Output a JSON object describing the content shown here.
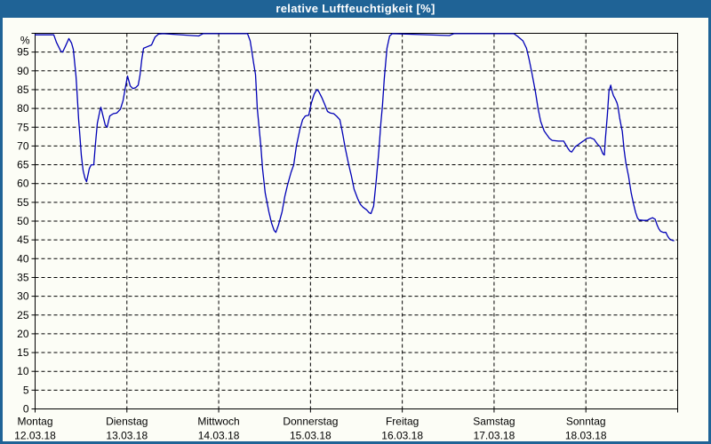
{
  "window": {
    "title": "relative Luftfeuchtigkeit [%]"
  },
  "colors": {
    "frame": "#1f6396",
    "title_text": "#ffffff",
    "background": "#fcfdf6",
    "plot_border": "#000000",
    "grid": "#000000",
    "axis_text": "#000000",
    "line": "#0000b6"
  },
  "chart_data": {
    "type": "line",
    "title": "relative Luftfeuchtigkeit [%]",
    "y_unit_label": "%",
    "ylim": [
      0,
      100
    ],
    "xlim_days": [
      0,
      7
    ],
    "grid": "dashed",
    "legend": "none",
    "y_tick_labels": [
      95,
      90,
      85,
      80,
      75,
      70,
      65,
      60,
      55,
      50,
      45,
      40,
      35,
      30,
      25,
      20,
      15,
      10,
      5,
      0
    ],
    "x_axis_days": [
      {
        "name": "Montag",
        "date": "12.03.18"
      },
      {
        "name": "Dienstag",
        "date": "13.03.18"
      },
      {
        "name": "Mittwoch",
        "date": "14.03.18"
      },
      {
        "name": "Donnerstag",
        "date": "15.03.18"
      },
      {
        "name": "Freitag",
        "date": "16.03.18"
      },
      {
        "name": "Samstag",
        "date": "17.03.18"
      },
      {
        "name": "Sonntag",
        "date": "18.03.18"
      }
    ],
    "series": [
      {
        "name": "relative Luftfeuchtigkeit",
        "unit": "%",
        "points": [
          [
            0.0,
            99.6
          ],
          [
            0.203,
            99.6
          ],
          [
            0.232,
            97.6
          ],
          [
            0.281,
            95.2
          ],
          [
            0.3,
            95.0
          ],
          [
            0.329,
            96.5
          ],
          [
            0.368,
            98.6
          ],
          [
            0.397,
            97.4
          ],
          [
            0.416,
            95.7
          ],
          [
            0.436,
            91.0
          ],
          [
            0.445,
            88.6
          ],
          [
            0.455,
            85.0
          ],
          [
            0.465,
            81.0
          ],
          [
            0.474,
            77.0
          ],
          [
            0.484,
            74.0
          ],
          [
            0.503,
            67.5
          ],
          [
            0.523,
            63.5
          ],
          [
            0.542,
            61.5
          ],
          [
            0.561,
            60.5
          ],
          [
            0.59,
            63.9
          ],
          [
            0.61,
            65.0
          ],
          [
            0.639,
            65.0
          ],
          [
            0.658,
            70.8
          ],
          [
            0.678,
            76.0
          ],
          [
            0.707,
            79.5
          ],
          [
            0.716,
            80.3
          ],
          [
            0.745,
            77.5
          ],
          [
            0.765,
            75.5
          ],
          [
            0.784,
            75.0
          ],
          [
            0.813,
            78.0
          ],
          [
            0.852,
            78.6
          ],
          [
            0.891,
            78.8
          ],
          [
            0.929,
            79.8
          ],
          [
            0.958,
            82.0
          ],
          [
            0.987,
            86.0
          ],
          [
            1.007,
            88.6
          ],
          [
            1.036,
            86.0
          ],
          [
            1.065,
            85.3
          ],
          [
            1.094,
            85.5
          ],
          [
            1.123,
            86.2
          ],
          [
            1.142,
            88.8
          ],
          [
            1.162,
            93.0
          ],
          [
            1.181,
            96.0
          ],
          [
            1.22,
            96.4
          ],
          [
            1.268,
            96.9
          ],
          [
            1.307,
            99.0
          ],
          [
            1.346,
            99.8
          ],
          [
            1.394,
            99.9
          ],
          [
            1.781,
            99.3
          ],
          [
            1.829,
            99.9
          ],
          [
            2.314,
            99.9
          ],
          [
            2.343,
            98.0
          ],
          [
            2.362,
            95.0
          ],
          [
            2.381,
            92.0
          ],
          [
            2.401,
            89.0
          ],
          [
            2.41,
            85.0
          ],
          [
            2.42,
            80.0
          ],
          [
            2.44,
            75.0
          ],
          [
            2.459,
            70.0
          ],
          [
            2.478,
            64.0
          ],
          [
            2.507,
            57.5
          ],
          [
            2.546,
            52.5
          ],
          [
            2.575,
            49.5
          ],
          [
            2.604,
            47.5
          ],
          [
            2.623,
            47.0
          ],
          [
            2.652,
            49.0
          ],
          [
            2.691,
            52.5
          ],
          [
            2.72,
            56.5
          ],
          [
            2.749,
            59.5
          ],
          [
            2.788,
            63.0
          ],
          [
            2.817,
            65.0
          ],
          [
            2.846,
            70.0
          ],
          [
            2.885,
            74.5
          ],
          [
            2.914,
            77.0
          ],
          [
            2.943,
            78.0
          ],
          [
            2.981,
            78.2
          ],
          [
            3.01,
            81.5
          ],
          [
            3.04,
            83.8
          ],
          [
            3.069,
            85.0
          ],
          [
            3.088,
            84.6
          ],
          [
            3.127,
            82.7
          ],
          [
            3.156,
            81.0
          ],
          [
            3.185,
            79.2
          ],
          [
            3.214,
            78.8
          ],
          [
            3.253,
            78.6
          ],
          [
            3.282,
            78.0
          ],
          [
            3.32,
            77.0
          ],
          [
            3.349,
            73.5
          ],
          [
            3.378,
            69.5
          ],
          [
            3.417,
            65.0
          ],
          [
            3.446,
            62.0
          ],
          [
            3.475,
            58.5
          ],
          [
            3.514,
            56.0
          ],
          [
            3.543,
            54.5
          ],
          [
            3.572,
            53.7
          ],
          [
            3.611,
            53.0
          ],
          [
            3.64,
            52.2
          ],
          [
            3.659,
            52.0
          ],
          [
            3.688,
            54.0
          ],
          [
            3.717,
            61.0
          ],
          [
            3.746,
            69.0
          ],
          [
            3.766,
            76.0
          ],
          [
            3.785,
            81.0
          ],
          [
            3.804,
            88.0
          ],
          [
            3.833,
            96.0
          ],
          [
            3.862,
            99.3
          ],
          [
            3.891,
            99.9
          ],
          [
            4.513,
            99.4
          ],
          [
            4.561,
            99.9
          ],
          [
            5.217,
            99.9
          ],
          [
            5.266,
            99.0
          ],
          [
            5.314,
            98.0
          ],
          [
            5.353,
            96.0
          ],
          [
            5.382,
            93.0
          ],
          [
            5.411,
            89.5
          ],
          [
            5.45,
            84.5
          ],
          [
            5.479,
            80.0
          ],
          [
            5.508,
            76.5
          ],
          [
            5.546,
            74.0
          ],
          [
            5.575,
            73.0
          ],
          [
            5.604,
            72.0
          ],
          [
            5.633,
            71.5
          ],
          [
            5.701,
            71.3
          ],
          [
            5.759,
            71.3
          ],
          [
            5.798,
            69.6
          ],
          [
            5.827,
            68.6
          ],
          [
            5.846,
            68.4
          ],
          [
            5.885,
            69.8
          ],
          [
            5.914,
            70.3
          ],
          [
            5.952,
            71.0
          ],
          [
            5.981,
            71.5
          ],
          [
            6.01,
            72.0
          ],
          [
            6.049,
            72.2
          ],
          [
            6.088,
            71.8
          ],
          [
            6.126,
            70.5
          ],
          [
            6.155,
            69.8
          ],
          [
            6.184,
            68.0
          ],
          [
            6.201,
            67.6
          ],
          [
            6.213,
            72.0
          ],
          [
            6.233,
            78.0
          ],
          [
            6.252,
            84.6
          ],
          [
            6.271,
            86.2
          ],
          [
            6.281,
            85.0
          ],
          [
            6.3,
            83.4
          ],
          [
            6.32,
            82.5
          ],
          [
            6.339,
            81.5
          ],
          [
            6.349,
            80.5
          ],
          [
            6.368,
            77.5
          ],
          [
            6.387,
            75.0
          ],
          [
            6.397,
            73.9
          ],
          [
            6.416,
            69.0
          ],
          [
            6.436,
            65.5
          ],
          [
            6.465,
            62.0
          ],
          [
            6.494,
            57.5
          ],
          [
            6.523,
            54.2
          ],
          [
            6.542,
            52.3
          ],
          [
            6.562,
            50.8
          ],
          [
            6.581,
            50.3
          ],
          [
            6.63,
            50.2
          ],
          [
            6.668,
            50.2
          ],
          [
            6.697,
            50.6
          ],
          [
            6.726,
            50.9
          ],
          [
            6.755,
            50.5
          ],
          [
            6.775,
            49.0
          ],
          [
            6.794,
            48.0
          ],
          [
            6.813,
            47.3
          ],
          [
            6.842,
            47.0
          ],
          [
            6.871,
            47.0
          ],
          [
            6.891,
            46.0
          ],
          [
            6.91,
            45.3
          ],
          [
            6.939,
            44.9
          ],
          [
            6.958,
            44.8
          ]
        ]
      }
    ]
  }
}
